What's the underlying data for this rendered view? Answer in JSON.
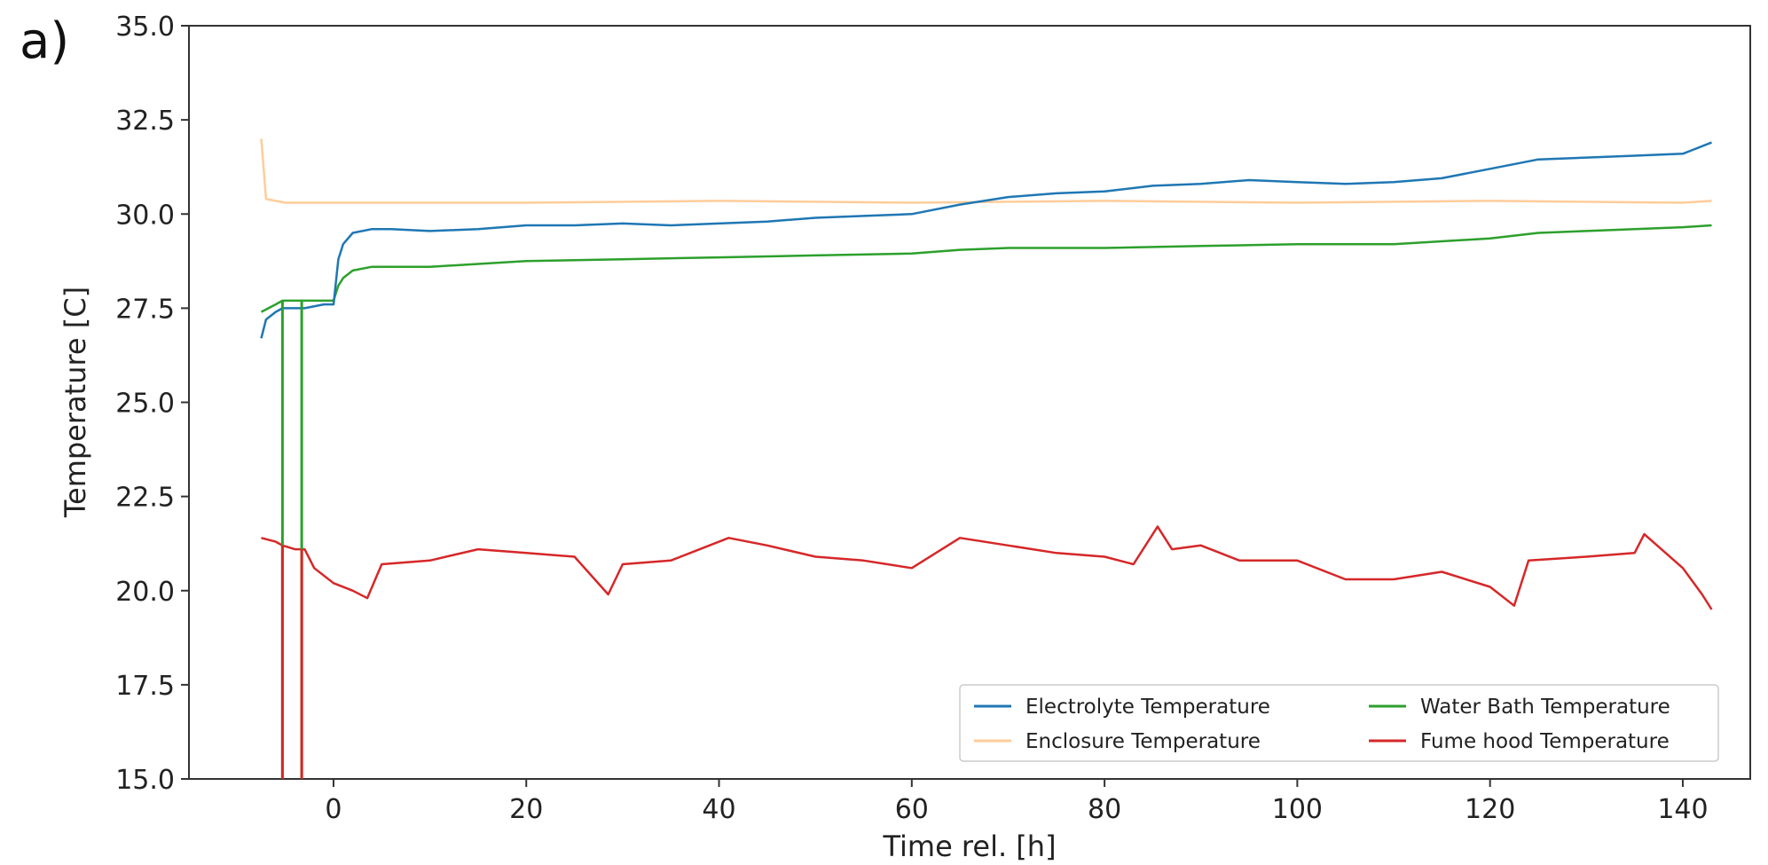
{
  "panel_label": "a)",
  "chart_data": {
    "type": "line",
    "title": "",
    "xlabel": "Time rel. [h]",
    "ylabel": "Temperature [C]",
    "xlim": [
      -15,
      147
    ],
    "ylim": [
      15.0,
      35.0
    ],
    "x_ticks": [
      0,
      20,
      40,
      60,
      80,
      100,
      120,
      140
    ],
    "y_ticks": [
      "15.0",
      "17.5",
      "20.0",
      "22.5",
      "25.0",
      "27.5",
      "30.0",
      "32.5",
      "35.0"
    ],
    "grid": false,
    "legend_position": "lower-right",
    "series": [
      {
        "name": "Electrolyte Temperature",
        "color": "#1f77b4",
        "x": [
          -7.5,
          -7,
          -6,
          -5.3,
          -5,
          -4,
          -3,
          -1,
          0,
          0.5,
          1,
          2,
          4,
          6,
          10,
          15,
          20,
          25,
          30,
          35,
          40,
          45,
          50,
          55,
          60,
          65,
          70,
          75,
          80,
          85,
          90,
          95,
          100,
          105,
          110,
          115,
          120,
          125,
          130,
          135,
          140,
          143
        ],
        "y": [
          26.7,
          27.2,
          27.4,
          27.5,
          27.5,
          27.5,
          27.5,
          27.6,
          27.6,
          28.8,
          29.2,
          29.5,
          29.6,
          29.6,
          29.55,
          29.6,
          29.7,
          29.7,
          29.75,
          29.7,
          29.75,
          29.8,
          29.9,
          29.95,
          30.0,
          30.25,
          30.45,
          30.55,
          30.6,
          30.75,
          30.8,
          30.9,
          30.85,
          30.8,
          30.85,
          30.95,
          31.2,
          31.45,
          31.5,
          31.55,
          31.6,
          31.9
        ]
      },
      {
        "name": "Water Bath Temperature",
        "color": "#2ca02c",
        "x": [
          -7.5,
          -6,
          -5.3,
          -5,
          -4,
          -3,
          -2,
          0,
          0.5,
          1,
          2,
          4,
          10,
          20,
          30,
          40,
          50,
          60,
          65,
          70,
          80,
          90,
          100,
          110,
          120,
          125,
          130,
          140,
          143
        ],
        "y": [
          27.4,
          27.6,
          27.7,
          27.7,
          27.7,
          27.7,
          27.7,
          27.7,
          28.1,
          28.3,
          28.5,
          28.6,
          28.6,
          28.75,
          28.8,
          28.85,
          28.9,
          28.95,
          29.05,
          29.1,
          29.1,
          29.15,
          29.2,
          29.2,
          29.35,
          29.5,
          29.55,
          29.65,
          29.7
        ]
      },
      {
        "name": "Enclosure Temperature",
        "color": "#ffcc99",
        "x": [
          -7.5,
          -7,
          -6,
          -5,
          0,
          20,
          40,
          60,
          80,
          100,
          120,
          140,
          143
        ],
        "y": [
          32.0,
          30.4,
          30.35,
          30.3,
          30.3,
          30.3,
          30.35,
          30.3,
          30.35,
          30.3,
          30.35,
          30.3,
          30.35
        ]
      },
      {
        "name": "Fume hood Temperature",
        "color": "#d62728",
        "x": [
          -7.5,
          -6,
          -5.3,
          -4,
          -3,
          -2,
          0,
          2,
          3.5,
          5,
          10,
          15,
          20,
          25,
          28.5,
          30,
          35,
          38,
          41,
          45,
          50,
          55,
          60,
          65,
          70,
          75,
          80,
          83,
          85.5,
          87,
          90,
          94,
          100,
          105,
          110,
          115,
          120,
          122.5,
          124,
          130,
          135,
          136,
          140,
          142,
          143
        ],
        "y": [
          21.4,
          21.3,
          21.2,
          21.1,
          21.1,
          20.6,
          20.2,
          20.0,
          19.8,
          20.7,
          20.8,
          21.1,
          21.0,
          20.9,
          19.9,
          20.7,
          20.8,
          21.1,
          21.4,
          21.2,
          20.9,
          20.8,
          20.6,
          21.4,
          21.2,
          21.0,
          20.9,
          20.7,
          21.7,
          21.1,
          21.2,
          20.8,
          20.8,
          20.3,
          20.3,
          20.5,
          20.1,
          19.6,
          20.8,
          20.9,
          21.0,
          21.5,
          20.6,
          19.9,
          19.5
        ]
      }
    ],
    "dropouts": [
      {
        "series": "Water Bath Temperature",
        "x": -5.3,
        "y": 15.0
      },
      {
        "series": "Water Bath Temperature",
        "x": -3.3,
        "y": 15.0
      },
      {
        "series": "Fume hood Temperature",
        "x": -5.3,
        "y": 15.0
      },
      {
        "series": "Fume hood Temperature",
        "x": -3.3,
        "y": 15.0
      }
    ],
    "legend": [
      "Electrolyte Temperature",
      "Water Bath Temperature",
      "Enclosure Temperature",
      "Fume hood Temperature"
    ]
  }
}
